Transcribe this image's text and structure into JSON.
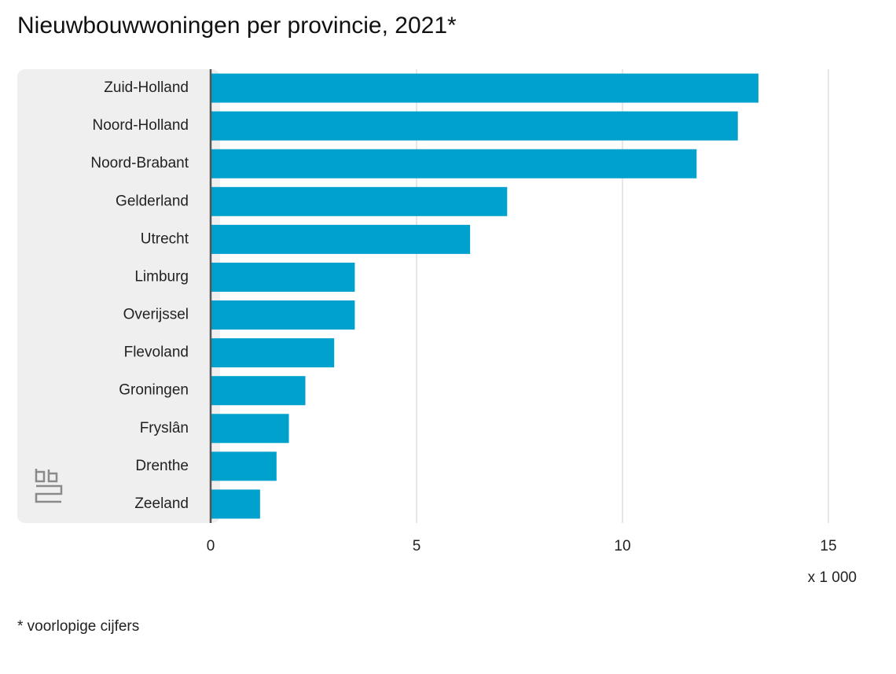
{
  "chart_data": {
    "type": "bar",
    "orientation": "horizontal",
    "title": "Nieuwbouwwoningen per provincie, 2021*",
    "categories": [
      "Zuid-Holland",
      "Noord-Holland",
      "Noord-Brabant",
      "Gelderland",
      "Utrecht",
      "Limburg",
      "Overijssel",
      "Flevoland",
      "Groningen",
      "Fryslân",
      "Drenthe",
      "Zeeland"
    ],
    "values": [
      13.3,
      12.8,
      11.8,
      7.2,
      6.3,
      3.5,
      3.5,
      3.0,
      2.3,
      1.9,
      1.6,
      1.2
    ],
    "color": "#00a1cd",
    "xlim": [
      0,
      15
    ],
    "xticks": [
      0,
      5,
      10,
      15
    ],
    "grid": true,
    "x_label": "x 1 000",
    "footnote": "* voorlopige cijfers"
  }
}
